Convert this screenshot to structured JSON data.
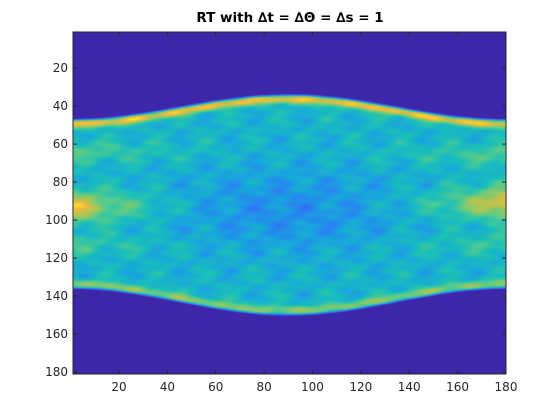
{
  "chart_data": {
    "type": "heatmap",
    "title": "RT with ∆t = ∆Θ = ∆s = 1",
    "xlabel": "",
    "ylabel": "",
    "xlim": [
      1,
      180
    ],
    "ylim": [
      1,
      181
    ],
    "y_direction": "reversed",
    "x_ticks": [
      20,
      40,
      60,
      80,
      100,
      120,
      140,
      160,
      180
    ],
    "y_ticks": [
      20,
      40,
      60,
      80,
      100,
      120,
      140,
      160,
      180
    ],
    "grid": false,
    "legend": "none",
    "colormap": "parula",
    "colors": {
      "background": "#3e26a8",
      "low": "#3e26a8",
      "mid": "#1ab2d6",
      "high": "#f9fb15"
    },
    "description_of_support": {
      "top_boundary": {
        "angle": [
          1,
          45,
          90,
          135,
          180
        ],
        "row": [
          48,
          39,
          35,
          39,
          48
        ]
      },
      "bottom_boundary": {
        "angle": [
          1,
          45,
          90,
          135,
          180
        ],
        "row": [
          135,
          145,
          149,
          145,
          135
        ]
      }
    },
    "intensity_profile": {
      "edge_rows": [
        48,
        135
      ],
      "bright_bands": [
        {
          "angle": 1,
          "row": 93,
          "level": 0.85
        },
        {
          "angle": 180,
          "row": 89,
          "level": 0.85
        },
        {
          "angle": 1,
          "row": 64,
          "level": 0.6
        },
        {
          "angle": 180,
          "row": 66,
          "level": 0.6
        },
        {
          "angle": 1,
          "row": 113,
          "level": 0.55
        },
        {
          "angle": 180,
          "row": 113,
          "level": 0.55
        }
      ],
      "central_low_region": {
        "angle_center": 90,
        "row_center": 95,
        "level": 0.33
      }
    }
  }
}
